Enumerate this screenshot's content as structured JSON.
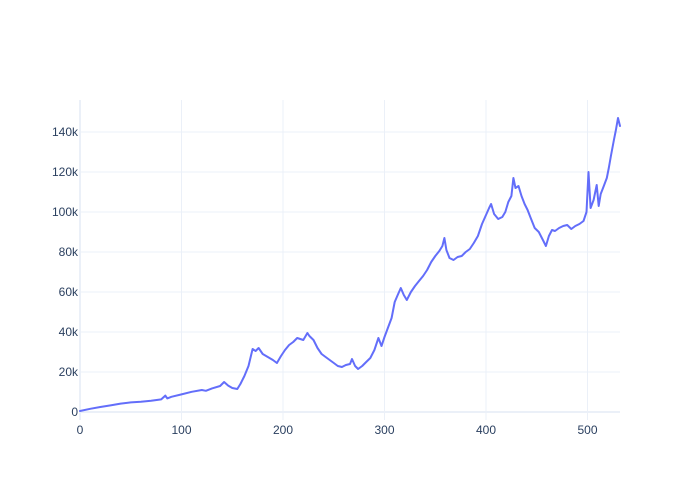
{
  "chart_data": {
    "type": "line",
    "title": "",
    "xlabel": "",
    "ylabel": "",
    "xlim": [
      0,
      532
    ],
    "ylim": [
      -4000,
      156000
    ],
    "grid": true,
    "legend": "none",
    "x_ticks": [
      0,
      100,
      200,
      300,
      400,
      500
    ],
    "x_tick_labels": [
      "0",
      "100",
      "200",
      "300",
      "400",
      "500"
    ],
    "y_ticks": [
      0,
      20000,
      40000,
      60000,
      80000,
      100000,
      120000,
      140000
    ],
    "y_tick_labels": [
      "0",
      "20k",
      "40k",
      "60k",
      "80k",
      "100k",
      "120k",
      "140k"
    ],
    "colors": {
      "series": "#636efa",
      "grid": "#ebf0f8",
      "tick_text": "#2a3f5f"
    },
    "series": [
      {
        "values": [
          [
            0,
            500
          ],
          [
            10,
            1600
          ],
          [
            20,
            2500
          ],
          [
            30,
            3300
          ],
          [
            40,
            4200
          ],
          [
            50,
            4800
          ],
          [
            60,
            5100
          ],
          [
            70,
            5600
          ],
          [
            80,
            6300
          ],
          [
            84,
            8200
          ],
          [
            86,
            6800
          ],
          [
            90,
            7600
          ],
          [
            100,
            8800
          ],
          [
            110,
            10100
          ],
          [
            120,
            11000
          ],
          [
            124,
            10600
          ],
          [
            130,
            11800
          ],
          [
            138,
            13000
          ],
          [
            142,
            15000
          ],
          [
            146,
            13200
          ],
          [
            150,
            12000
          ],
          [
            155,
            11500
          ],
          [
            158,
            14000
          ],
          [
            162,
            18000
          ],
          [
            166,
            23000
          ],
          [
            170,
            31500
          ],
          [
            173,
            30500
          ],
          [
            176,
            32000
          ],
          [
            180,
            29000
          ],
          [
            185,
            27500
          ],
          [
            190,
            26000
          ],
          [
            194,
            24500
          ],
          [
            198,
            28000
          ],
          [
            202,
            31000
          ],
          [
            206,
            33500
          ],
          [
            210,
            35000
          ],
          [
            214,
            37000
          ],
          [
            220,
            36000
          ],
          [
            224,
            39500
          ],
          [
            226,
            38000
          ],
          [
            230,
            36000
          ],
          [
            234,
            32000
          ],
          [
            238,
            29000
          ],
          [
            242,
            27500
          ],
          [
            246,
            26000
          ],
          [
            250,
            24500
          ],
          [
            254,
            23000
          ],
          [
            258,
            22500
          ],
          [
            262,
            23500
          ],
          [
            266,
            24000
          ],
          [
            268,
            26500
          ],
          [
            271,
            23000
          ],
          [
            274,
            21500
          ],
          [
            278,
            23000
          ],
          [
            282,
            25000
          ],
          [
            286,
            27000
          ],
          [
            290,
            31000
          ],
          [
            294,
            37000
          ],
          [
            297,
            33000
          ],
          [
            300,
            37500
          ],
          [
            304,
            43000
          ],
          [
            307,
            47000
          ],
          [
            310,
            55000
          ],
          [
            313,
            58500
          ],
          [
            316,
            62000
          ],
          [
            319,
            58500
          ],
          [
            322,
            56000
          ],
          [
            326,
            60000
          ],
          [
            330,
            63000
          ],
          [
            334,
            65500
          ],
          [
            338,
            68000
          ],
          [
            342,
            71000
          ],
          [
            346,
            75000
          ],
          [
            350,
            78000
          ],
          [
            354,
            80500
          ],
          [
            357,
            83000
          ],
          [
            359,
            87000
          ],
          [
            361,
            81000
          ],
          [
            364,
            77000
          ],
          [
            368,
            76000
          ],
          [
            372,
            77500
          ],
          [
            376,
            78000
          ],
          [
            380,
            80000
          ],
          [
            384,
            81500
          ],
          [
            388,
            84500
          ],
          [
            392,
            88000
          ],
          [
            396,
            94000
          ],
          [
            400,
            98500
          ],
          [
            403,
            102000
          ],
          [
            405,
            104000
          ],
          [
            408,
            99000
          ],
          [
            412,
            96500
          ],
          [
            416,
            97500
          ],
          [
            419,
            100000
          ],
          [
            422,
            105000
          ],
          [
            425,
            108000
          ],
          [
            427,
            117000
          ],
          [
            429,
            112000
          ],
          [
            432,
            113000
          ],
          [
            435,
            108000
          ],
          [
            438,
            104000
          ],
          [
            441,
            101000
          ],
          [
            444,
            97000
          ],
          [
            448,
            92000
          ],
          [
            452,
            90000
          ],
          [
            456,
            86000
          ],
          [
            459,
            83000
          ],
          [
            462,
            88000
          ],
          [
            465,
            91000
          ],
          [
            468,
            90500
          ],
          [
            472,
            92000
          ],
          [
            476,
            93000
          ],
          [
            480,
            93500
          ],
          [
            484,
            91500
          ],
          [
            488,
            93000
          ],
          [
            492,
            94000
          ],
          [
            496,
            95500
          ],
          [
            499,
            100000
          ],
          [
            501,
            120000
          ],
          [
            503,
            102000
          ],
          [
            506,
            106000
          ],
          [
            509,
            113500
          ],
          [
            511,
            103000
          ],
          [
            513,
            109000
          ],
          [
            516,
            113000
          ],
          [
            519,
            117000
          ],
          [
            521,
            122000
          ],
          [
            523,
            128000
          ],
          [
            526,
            136000
          ],
          [
            528,
            141000
          ],
          [
            530,
            147000
          ],
          [
            532,
            143000
          ]
        ]
      }
    ]
  }
}
